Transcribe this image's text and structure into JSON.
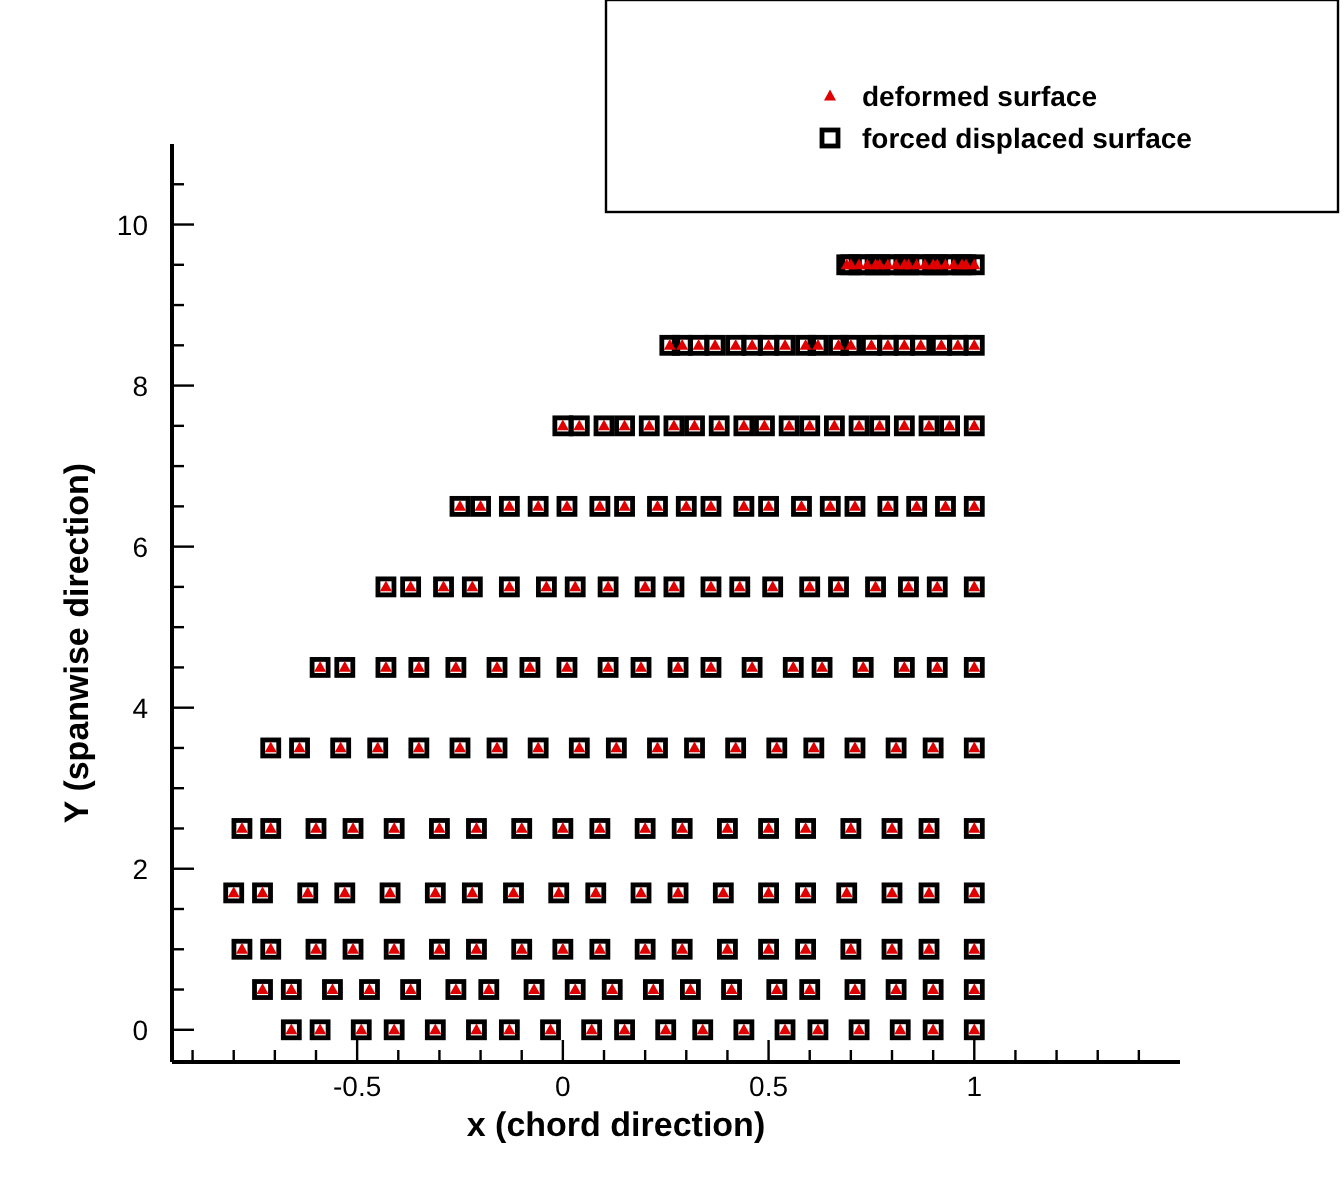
{
  "chart_data": {
    "type": "scatter",
    "xlabel": "x (chord direction)",
    "ylabel": "Y (spanwise direction)",
    "xlim": [
      -0.95,
      1.5
    ],
    "ylim": [
      -0.4,
      11
    ],
    "xticks": [
      {
        "value": -0.9,
        "label": null
      },
      {
        "value": -0.8,
        "label": null
      },
      {
        "value": -0.7,
        "label": null
      },
      {
        "value": -0.6,
        "label": null
      },
      -0.5,
      {
        "value": -0.4,
        "label": null
      },
      {
        "value": -0.3,
        "label": null
      },
      {
        "value": -0.2,
        "label": null
      },
      {
        "value": -0.1,
        "label": null
      },
      0,
      {
        "value": 0.1,
        "label": null
      },
      {
        "value": 0.2,
        "label": null
      },
      {
        "value": 0.3,
        "label": null
      },
      {
        "value": 0.4,
        "label": null
      },
      0.5,
      {
        "value": 0.6,
        "label": null
      },
      {
        "value": 0.7,
        "label": null
      },
      {
        "value": 0.8,
        "label": null
      },
      {
        "value": 0.9,
        "label": null
      },
      1,
      {
        "value": 1.1,
        "label": null
      },
      {
        "value": 1.2,
        "label": null
      },
      {
        "value": 1.3,
        "label": null
      },
      {
        "value": 1.4,
        "label": null
      }
    ],
    "yticks": [
      0,
      {
        "value": 0.5,
        "label": null
      },
      {
        "value": 1,
        "label": null
      },
      {
        "value": 1.5,
        "label": null
      },
      2,
      {
        "value": 2.5,
        "label": null
      },
      {
        "value": 3,
        "label": null
      },
      {
        "value": 3.5,
        "label": null
      },
      4,
      {
        "value": 4.5,
        "label": null
      },
      {
        "value": 5,
        "label": null
      },
      {
        "value": 5.5,
        "label": null
      },
      6,
      {
        "value": 6.5,
        "label": null
      },
      {
        "value": 7,
        "label": null
      },
      {
        "value": 7.5,
        "label": null
      },
      8,
      {
        "value": 8.5,
        "label": null
      },
      {
        "value": 9,
        "label": null
      },
      {
        "value": 9.5,
        "label": null
      },
      10,
      {
        "value": 10.5,
        "label": null
      }
    ],
    "grid": false,
    "legend": "top right",
    "x": [
      -0.66,
      -0.59,
      -0.49,
      -0.41,
      -0.31,
      -0.21,
      -0.13,
      -0.03,
      0.07,
      0.15,
      0.25,
      0.34,
      0.44,
      0.54,
      0.62,
      0.72,
      0.82,
      0.9,
      1,
      -0.73,
      -0.66,
      -0.56,
      -0.47,
      -0.37,
      -0.26,
      -0.18,
      -0.07,
      0.03,
      0.12,
      0.22,
      0.31,
      0.41,
      0.52,
      0.6,
      0.71,
      0.81,
      0.9,
      1,
      -0.78,
      -0.71,
      -0.6,
      -0.51,
      -0.41,
      -0.3,
      -0.21,
      -0.1,
      0.0,
      0.09,
      0.2,
      0.29,
      0.4,
      0.5,
      0.59,
      0.7,
      0.8,
      0.89,
      1,
      -0.8,
      -0.73,
      -0.62,
      -0.53,
      -0.42,
      -0.31,
      -0.22,
      -0.12,
      -0.01,
      0.08,
      0.19,
      0.28,
      0.39,
      0.5,
      0.59,
      0.69,
      0.8,
      0.89,
      1,
      -0.78,
      -0.71,
      -0.6,
      -0.51,
      -0.41,
      -0.3,
      -0.21,
      -0.1,
      0.0,
      0.09,
      0.2,
      0.29,
      0.4,
      0.5,
      0.59,
      0.7,
      0.8,
      0.89,
      1,
      -0.71,
      -0.64,
      -0.54,
      -0.45,
      -0.35,
      -0.25,
      -0.16,
      -0.06,
      0.04,
      0.13,
      0.23,
      0.32,
      0.42,
      0.52,
      0.61,
      0.71,
      0.81,
      0.9,
      1,
      -0.59,
      -0.53,
      -0.43,
      -0.35,
      -0.26,
      -0.16,
      -0.08,
      0.01,
      0.11,
      0.19,
      0.28,
      0.36,
      0.46,
      0.56,
      0.63,
      0.73,
      0.83,
      0.91,
      1,
      -0.43,
      -0.37,
      -0.29,
      -0.22,
      -0.13,
      -0.04,
      0.03,
      0.11,
      0.2,
      0.27,
      0.36,
      0.43,
      0.51,
      0.6,
      0.67,
      0.76,
      0.84,
      0.91,
      1,
      -0.25,
      -0.2,
      -0.13,
      -0.06,
      0.01,
      0.09,
      0.15,
      0.23,
      0.3,
      0.36,
      0.44,
      0.5,
      0.58,
      0.65,
      0.71,
      0.79,
      0.86,
      0.93,
      1,
      0,
      0.04,
      0.1,
      0.15,
      0.21,
      0.27,
      0.32,
      0.38,
      0.44,
      0.49,
      0.55,
      0.6,
      0.66,
      0.72,
      0.77,
      0.83,
      0.89,
      0.94,
      1,
      0.26,
      0.29,
      0.33,
      0.37,
      0.42,
      0.46,
      0.5,
      0.54,
      0.59,
      0.62,
      0.67,
      0.7,
      0.75,
      0.79,
      0.83,
      0.87,
      0.92,
      0.96,
      1,
      0.69,
      0.7,
      0.72,
      0.74,
      0.76,
      0.77,
      0.79,
      0.81,
      0.83,
      0.84,
      0.86,
      0.88,
      0.9,
      0.91,
      0.93,
      0.95,
      0.97,
      0.98,
      1
    ],
    "series": [
      {
        "name": "deformed surface",
        "color": "#e00000",
        "marker": "triangle",
        "values": [
          0,
          0,
          0,
          0,
          0,
          0,
          0,
          0,
          0,
          0,
          0,
          0,
          0,
          0,
          0,
          0,
          0,
          0,
          0,
          0.5,
          0.5,
          0.5,
          0.5,
          0.5,
          0.5,
          0.5,
          0.5,
          0.5,
          0.5,
          0.5,
          0.5,
          0.5,
          0.5,
          0.5,
          0.5,
          0.5,
          0.5,
          0.5,
          1,
          1,
          1,
          1,
          1,
          1,
          1,
          1,
          1,
          1,
          1,
          1,
          1,
          1,
          1,
          1,
          1,
          1,
          1,
          1.7,
          1.7,
          1.7,
          1.7,
          1.7,
          1.7,
          1.7,
          1.7,
          1.7,
          1.7,
          1.7,
          1.7,
          1.7,
          1.7,
          1.7,
          1.7,
          1.7,
          1.7,
          1.7,
          2.5,
          2.5,
          2.5,
          2.5,
          2.5,
          2.5,
          2.5,
          2.5,
          2.5,
          2.5,
          2.5,
          2.5,
          2.5,
          2.5,
          2.5,
          2.5,
          2.5,
          2.5,
          2.5,
          3.5,
          3.5,
          3.5,
          3.5,
          3.5,
          3.5,
          3.5,
          3.5,
          3.5,
          3.5,
          3.5,
          3.5,
          3.5,
          3.5,
          3.5,
          3.5,
          3.5,
          3.5,
          3.5,
          4.5,
          4.5,
          4.5,
          4.5,
          4.5,
          4.5,
          4.5,
          4.5,
          4.5,
          4.5,
          4.5,
          4.5,
          4.5,
          4.5,
          4.5,
          4.5,
          4.5,
          4.5,
          4.5,
          5.5,
          5.5,
          5.5,
          5.5,
          5.5,
          5.5,
          5.5,
          5.5,
          5.5,
          5.5,
          5.5,
          5.5,
          5.5,
          5.5,
          5.5,
          5.5,
          5.5,
          5.5,
          5.5,
          6.5,
          6.5,
          6.5,
          6.5,
          6.5,
          6.5,
          6.5,
          6.5,
          6.5,
          6.5,
          6.5,
          6.5,
          6.5,
          6.5,
          6.5,
          6.5,
          6.5,
          6.5,
          6.5,
          7.5,
          7.5,
          7.5,
          7.5,
          7.5,
          7.5,
          7.5,
          7.5,
          7.5,
          7.5,
          7.5,
          7.5,
          7.5,
          7.5,
          7.5,
          7.5,
          7.5,
          7.5,
          7.5,
          8.5,
          8.5,
          8.5,
          8.5,
          8.5,
          8.5,
          8.5,
          8.5,
          8.5,
          8.5,
          8.5,
          8.5,
          8.5,
          8.5,
          8.5,
          8.5,
          8.5,
          8.5,
          8.5,
          9.5,
          9.5,
          9.5,
          9.5,
          9.5,
          9.5,
          9.5,
          9.5,
          9.5,
          9.5,
          9.5,
          9.5,
          9.5,
          9.5,
          9.5,
          9.5,
          9.5,
          9.5,
          9.5
        ]
      },
      {
        "name": "forced displaced surface",
        "color": "#000000",
        "marker": "square",
        "values": [
          0,
          0,
          0,
          0,
          0,
          0,
          0,
          0,
          0,
          0,
          0,
          0,
          0,
          0,
          0,
          0,
          0,
          0,
          0,
          0.5,
          0.5,
          0.5,
          0.5,
          0.5,
          0.5,
          0.5,
          0.5,
          0.5,
          0.5,
          0.5,
          0.5,
          0.5,
          0.5,
          0.5,
          0.5,
          0.5,
          0.5,
          0.5,
          1,
          1,
          1,
          1,
          1,
          1,
          1,
          1,
          1,
          1,
          1,
          1,
          1,
          1,
          1,
          1,
          1,
          1,
          1,
          1.7,
          1.7,
          1.7,
          1.7,
          1.7,
          1.7,
          1.7,
          1.7,
          1.7,
          1.7,
          1.7,
          1.7,
          1.7,
          1.7,
          1.7,
          1.7,
          1.7,
          1.7,
          1.7,
          2.5,
          2.5,
          2.5,
          2.5,
          2.5,
          2.5,
          2.5,
          2.5,
          2.5,
          2.5,
          2.5,
          2.5,
          2.5,
          2.5,
          2.5,
          2.5,
          2.5,
          2.5,
          2.5,
          3.5,
          3.5,
          3.5,
          3.5,
          3.5,
          3.5,
          3.5,
          3.5,
          3.5,
          3.5,
          3.5,
          3.5,
          3.5,
          3.5,
          3.5,
          3.5,
          3.5,
          3.5,
          3.5,
          4.5,
          4.5,
          4.5,
          4.5,
          4.5,
          4.5,
          4.5,
          4.5,
          4.5,
          4.5,
          4.5,
          4.5,
          4.5,
          4.5,
          4.5,
          4.5,
          4.5,
          4.5,
          4.5,
          5.5,
          5.5,
          5.5,
          5.5,
          5.5,
          5.5,
          5.5,
          5.5,
          5.5,
          5.5,
          5.5,
          5.5,
          5.5,
          5.5,
          5.5,
          5.5,
          5.5,
          5.5,
          5.5,
          6.5,
          6.5,
          6.5,
          6.5,
          6.5,
          6.5,
          6.5,
          6.5,
          6.5,
          6.5,
          6.5,
          6.5,
          6.5,
          6.5,
          6.5,
          6.5,
          6.5,
          6.5,
          6.5,
          7.5,
          7.5,
          7.5,
          7.5,
          7.5,
          7.5,
          7.5,
          7.5,
          7.5,
          7.5,
          7.5,
          7.5,
          7.5,
          7.5,
          7.5,
          7.5,
          7.5,
          7.5,
          7.5,
          8.5,
          8.5,
          8.5,
          8.5,
          8.5,
          8.5,
          8.5,
          8.5,
          8.5,
          8.5,
          8.5,
          8.5,
          8.5,
          8.5,
          8.5,
          8.5,
          8.5,
          8.5,
          8.5,
          9.5,
          9.5,
          9.5,
          9.5,
          9.5,
          9.5,
          9.5,
          9.5,
          9.5,
          9.5,
          9.5,
          9.5,
          9.5,
          9.5,
          9.5,
          9.5,
          9.5,
          9.5,
          9.5
        ]
      }
    ]
  }
}
